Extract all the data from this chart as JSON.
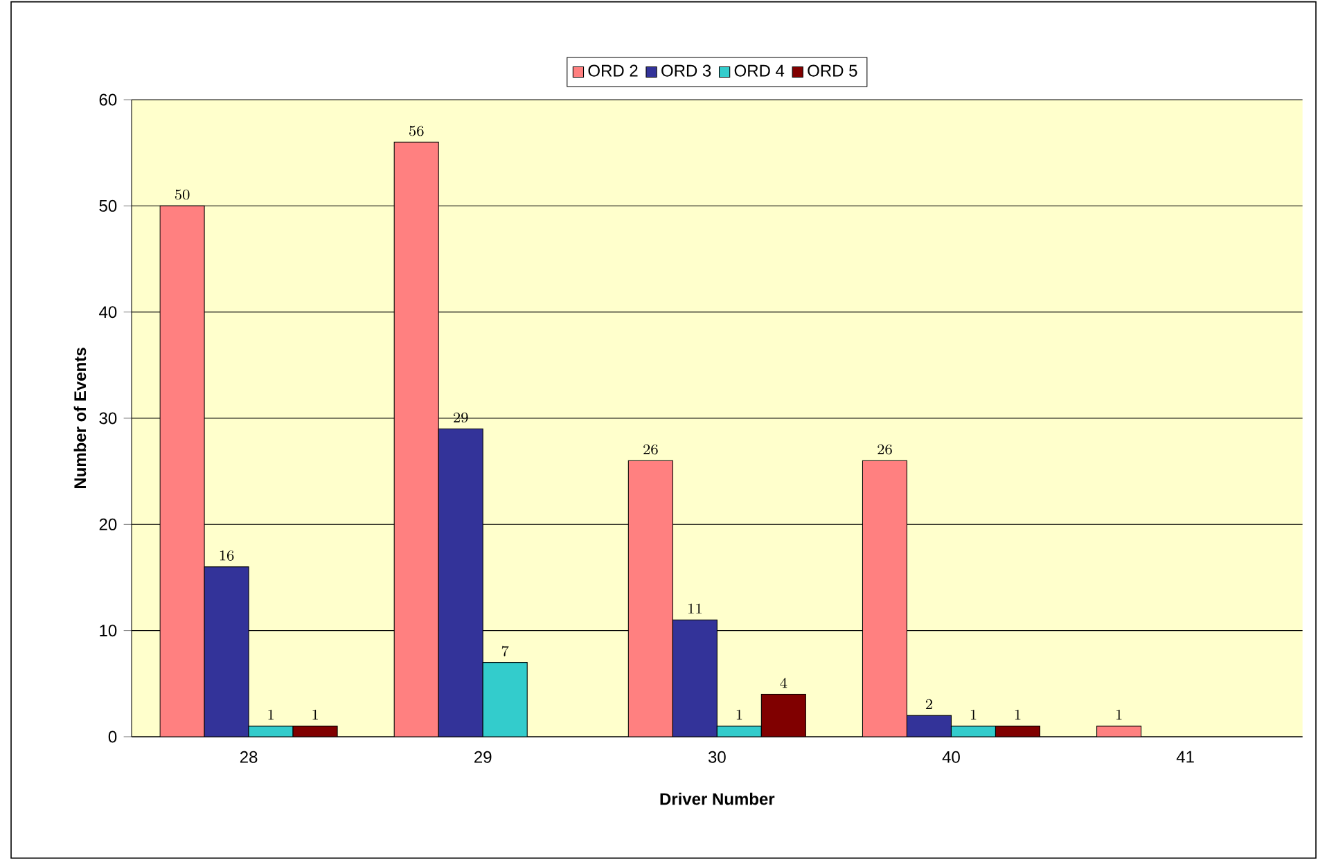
{
  "chart_data": {
    "type": "bar",
    "xlabel": "Driver Number",
    "ylabel": "Number of Events",
    "categories": [
      "28",
      "29",
      "30",
      "40",
      "41"
    ],
    "series": [
      {
        "name": "ORD 2",
        "color": "#ff8080",
        "values": [
          50,
          56,
          26,
          26,
          1
        ]
      },
      {
        "name": "ORD 3",
        "color": "#333399",
        "values": [
          16,
          29,
          11,
          2,
          null
        ]
      },
      {
        "name": "ORD 4",
        "color": "#33cccc",
        "values": [
          1,
          7,
          1,
          1,
          null
        ]
      },
      {
        "name": "ORD 5",
        "color": "#800000",
        "values": [
          1,
          null,
          4,
          1,
          null
        ]
      }
    ],
    "ylim": [
      0,
      60
    ],
    "yticks": [
      0,
      10,
      20,
      30,
      40,
      50,
      60
    ],
    "grid": "y",
    "legend": "top",
    "data_labels": true
  }
}
